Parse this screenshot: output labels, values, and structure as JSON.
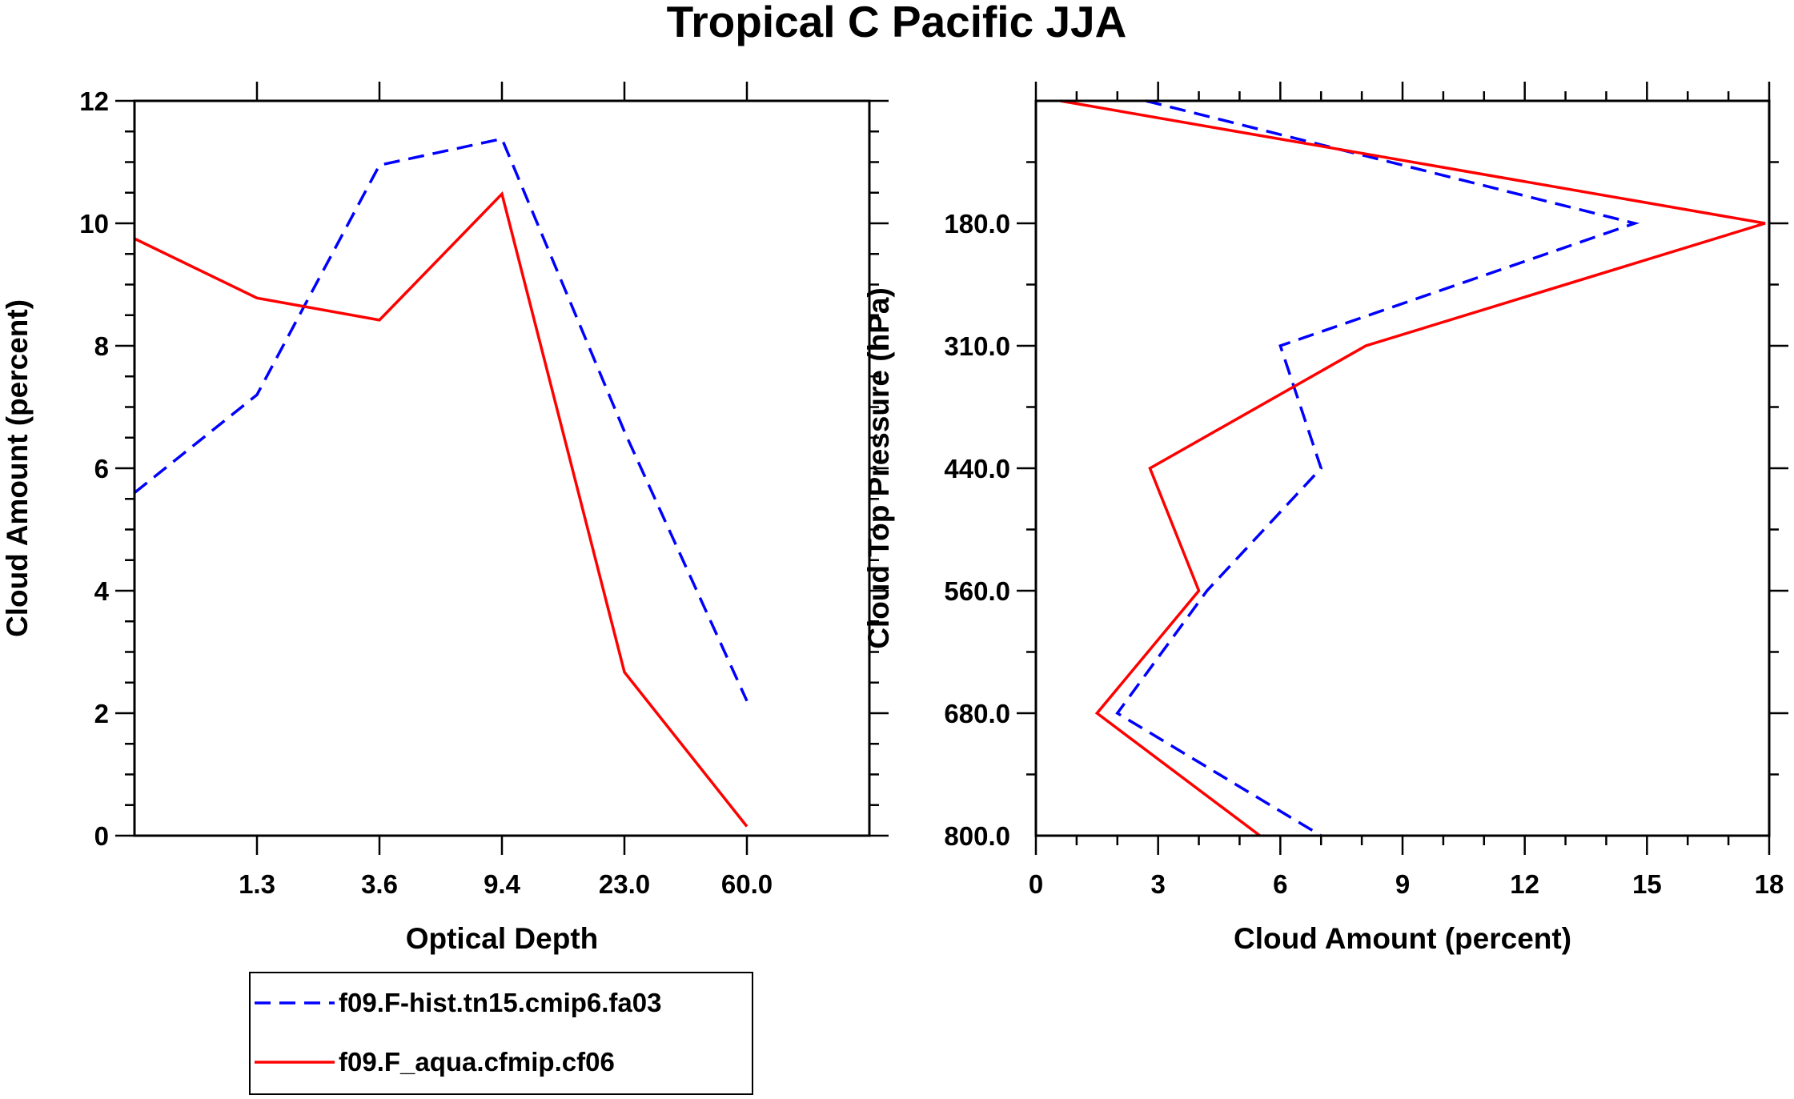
{
  "title": "Tropical C Pacific JJA",
  "colors": {
    "series1": "#0000ff",
    "series2": "#ff0000",
    "axis": "#000000"
  },
  "legend": {
    "entries": [
      {
        "label": "f09.F-hist.tn15.cmip6.fa03",
        "style": "dashed",
        "color": "#0000ff"
      },
      {
        "label": "f09.F_aqua.cfmip.cf06",
        "style": "solid",
        "color": "#ff0000"
      }
    ]
  },
  "chart_data": [
    {
      "type": "line",
      "xlabel": "Optical Depth",
      "ylabel": "Cloud Amount (percent)",
      "x_tick_labels": [
        "1.3",
        "3.6",
        "9.4",
        "23.0",
        "60.0"
      ],
      "x_bin_index": [
        0,
        1,
        2,
        3,
        4,
        5,
        6
      ],
      "ylim": [
        0,
        12
      ],
      "y_ticks": [
        0,
        2,
        4,
        6,
        8,
        10,
        12
      ],
      "series": [
        {
          "name": "f09.F-hist.tn15.cmip6.fa03",
          "style": "dashed",
          "values": [
            5.6,
            7.2,
            10.95,
            11.38,
            6.6,
            2.2,
            null
          ]
        },
        {
          "name": "f09.F_aqua.cfmip.cf06",
          "style": "solid",
          "values": [
            9.75,
            8.78,
            8.42,
            10.48,
            2.67,
            0.15,
            null
          ]
        }
      ]
    },
    {
      "type": "line",
      "xlabel": "Cloud Amount (percent)",
      "ylabel": "Cloud Top Pressure (hPa)",
      "xlim": [
        0,
        18
      ],
      "x_ticks": [
        0,
        3,
        6,
        9,
        12,
        15,
        18
      ],
      "y_tick_labels": [
        "180.0",
        "310.0",
        "440.0",
        "560.0",
        "680.0",
        "800.0"
      ],
      "y_bin_index": [
        0,
        1,
        2,
        3,
        4,
        5,
        6
      ],
      "series": [
        {
          "name": "f09.F-hist.tn15.cmip6.fa03",
          "style": "dashed",
          "values": [
            2.7,
            14.7,
            6.0,
            7.0,
            4.2,
            2.0,
            7.0
          ]
        },
        {
          "name": "f09.F_aqua.cfmip.cf06",
          "style": "solid",
          "values": [
            0.6,
            17.9,
            8.1,
            2.8,
            4.0,
            1.5,
            5.5
          ]
        }
      ]
    }
  ]
}
